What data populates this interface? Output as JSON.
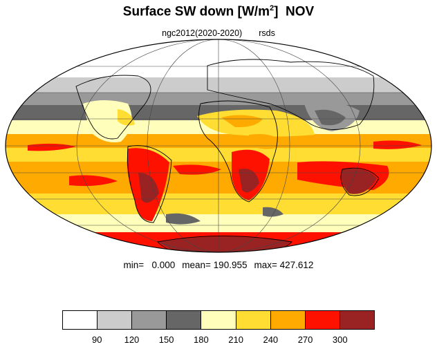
{
  "title": {
    "main": "Surface SW down [W/m",
    "sup": "2",
    "close": "]",
    "month": "NOV"
  },
  "subtitle": {
    "run": "ngc2012(2020-2020)",
    "var": "rsds"
  },
  "stats": {
    "min_label": "min=",
    "min": "0.000",
    "mean_label": "mean=",
    "mean": "190.955",
    "max_label": "max=",
    "max": "427.612"
  },
  "colorbar": {
    "colors": [
      "#ffffff",
      "#cccccc",
      "#999999",
      "#666666",
      "#ffffbb",
      "#ffdd33",
      "#ffaa00",
      "#ff1100",
      "#992222"
    ],
    "ticks": [
      "90",
      "120",
      "150",
      "180",
      "210",
      "240",
      "270",
      "300"
    ]
  },
  "chart_data": {
    "type": "heatmap",
    "projection": "mollweide",
    "title": "Surface SW down [W/m2]  NOV",
    "subtitle": "ngc2012(2020-2020)  rsds",
    "levels": [
      90,
      120,
      150,
      180,
      210,
      240,
      270,
      300
    ],
    "stats": {
      "min": 0.0,
      "mean": 190.955,
      "max": 427.612
    }
  }
}
